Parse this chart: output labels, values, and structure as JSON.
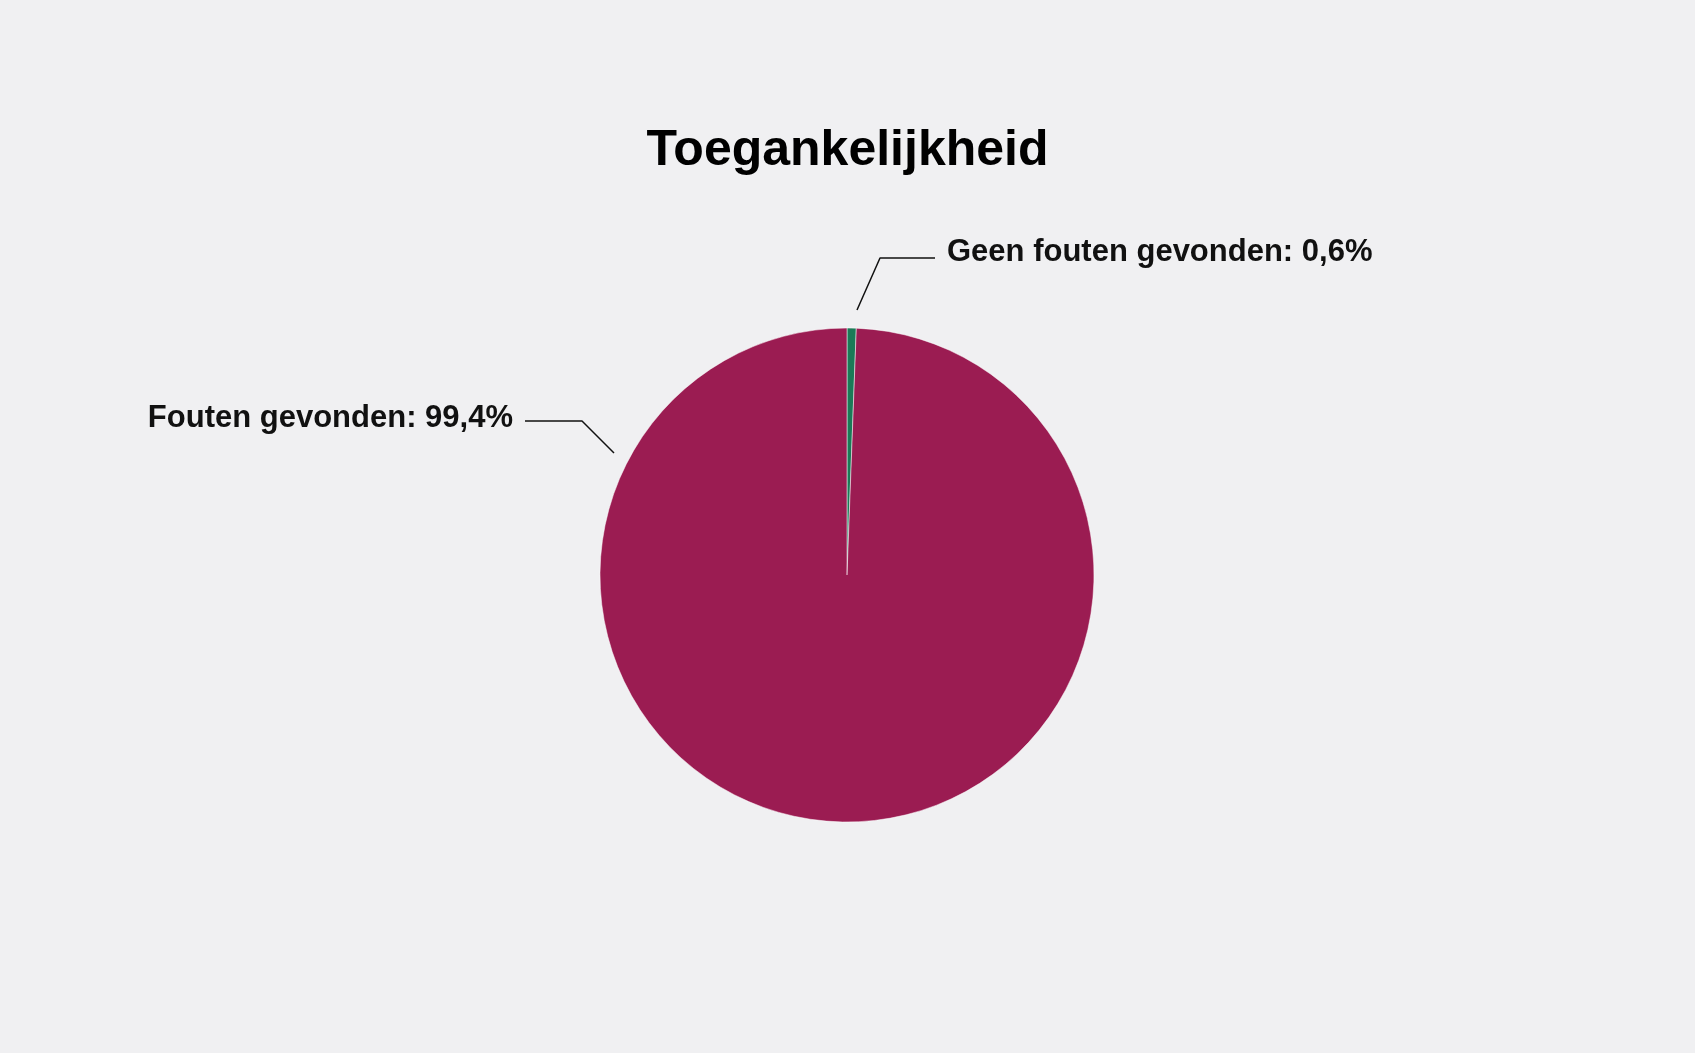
{
  "chart_data": {
    "type": "pie",
    "title": "Toegankelijkheid",
    "categories": [
      "Geen fouten gevonden",
      "Fouten gevonden"
    ],
    "values": [
      0.6,
      99.4
    ],
    "colors": [
      "#1b7a57",
      "#9b1c52"
    ],
    "value_labels": [
      "0,6%",
      "99,4%"
    ]
  }
}
